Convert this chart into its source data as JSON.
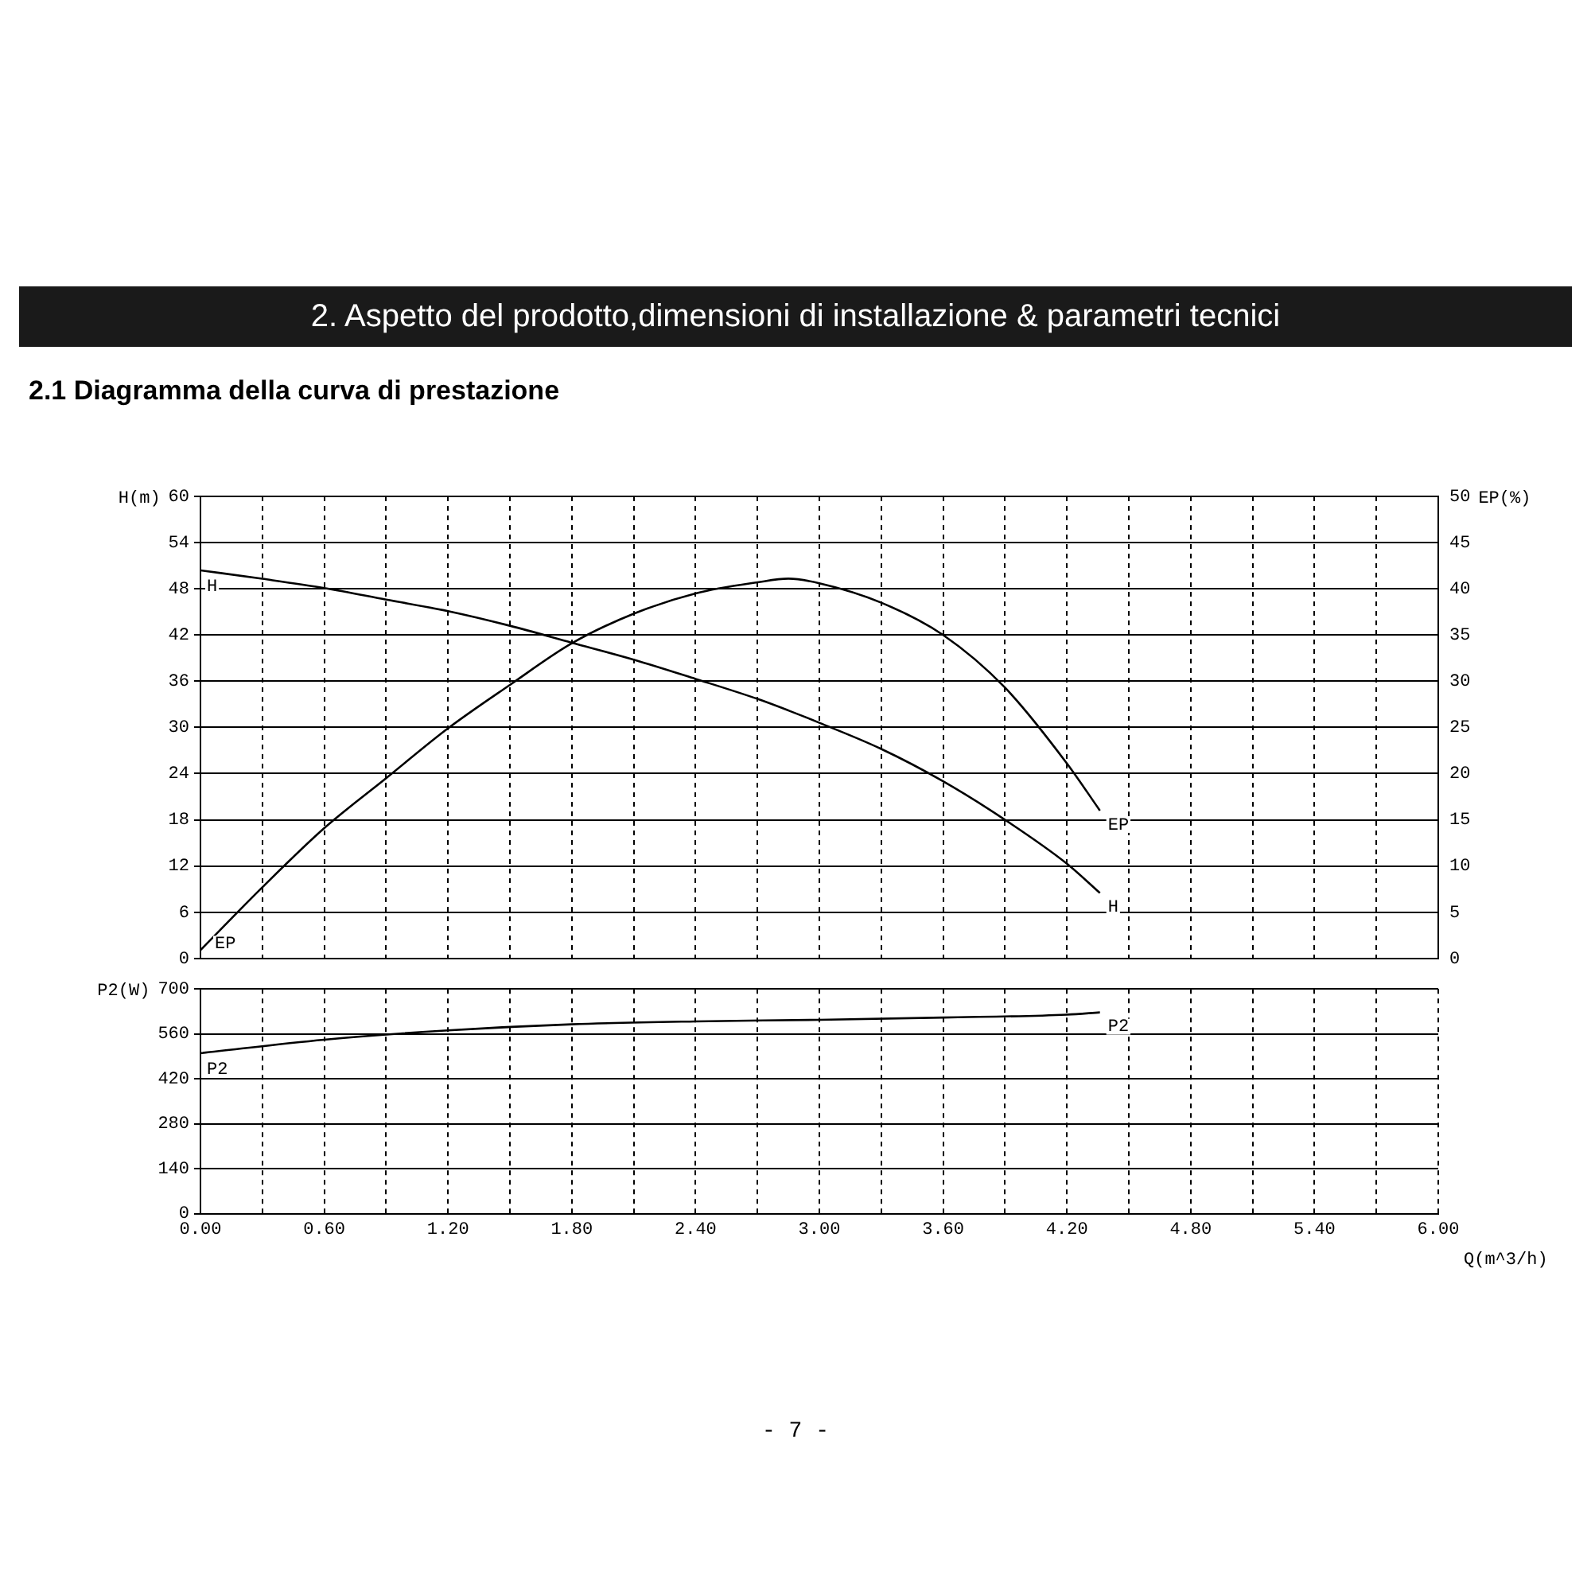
{
  "chart_data": [
    {
      "type": "line",
      "title": "2. Aspetto del prodotto,dimensioni di installazione & parametri tecnici",
      "subtitle": "2.1 Diagramma della curva di prestazione",
      "ylabel": "H(m)",
      "y2label": "EP(%)",
      "x": [
        0,
        0.3,
        0.6,
        0.9,
        1.2,
        1.5,
        1.8,
        2.1,
        2.4,
        2.7,
        2.85,
        3.0,
        3.3,
        3.6,
        3.9,
        4.2,
        4.36
      ],
      "series": [
        {
          "name": "H",
          "color": "#000000",
          "values": [
            50.4,
            49.3,
            48.1,
            46.6,
            45.1,
            43.2,
            41.0,
            38.8,
            36.3,
            33.7,
            32.2,
            30.6,
            27.2,
            23.0,
            18.0,
            12.3,
            8.5
          ]
        },
        {
          "name": "EP",
          "color": "#000000",
          "axis": "y2",
          "values": [
            0.9,
            7.7,
            14.1,
            19.5,
            24.9,
            29.6,
            34.1,
            37.3,
            39.5,
            40.7,
            41.1,
            40.6,
            38.5,
            35.0,
            29.3,
            21.1,
            16.0
          ]
        }
      ],
      "xlim": [
        0,
        6
      ],
      "xticks": [
        0,
        0.3,
        0.6,
        0.9,
        1.2,
        1.5,
        1.8,
        2.1,
        2.4,
        2.7,
        3,
        3.3,
        3.6,
        3.9,
        4.2,
        4.5,
        4.8,
        5.1,
        5.4,
        5.7,
        6
      ],
      "ylim": [
        0,
        60
      ],
      "yticks": [
        0,
        6,
        12,
        18,
        24,
        30,
        36,
        42,
        48,
        54,
        60
      ],
      "y2lim": [
        0,
        50
      ],
      "y2ticks": [
        0,
        5,
        10,
        15,
        20,
        25,
        30,
        35,
        40,
        45,
        50
      ],
      "tick_labels": "y",
      "grid": true,
      "legend": false,
      "marker": "none",
      "line_style": "solid"
    },
    {
      "type": "line",
      "xlabel": "Q(m^3/h)",
      "ylabel": "P2(W)",
      "series": [
        {
          "name": "P2",
          "color": "#000000",
          "x": [
            0,
            0.6,
            1.2,
            1.8,
            2.4,
            3.0,
            3.6,
            4.2,
            4.36
          ],
          "values": [
            500,
            542,
            571,
            590,
            599,
            604,
            611,
            620,
            627
          ]
        }
      ],
      "xlim": [
        0,
        6
      ],
      "xticks": [
        {
          "value": 0,
          "label": "0.00"
        },
        {
          "value": 0.3,
          "label": null
        },
        {
          "value": 0.6,
          "label": "0.60"
        },
        {
          "value": 0.9,
          "label": null
        },
        {
          "value": 1.2,
          "label": "1.20"
        },
        {
          "value": 1.5,
          "label": null
        },
        {
          "value": 1.8,
          "label": "1.80"
        },
        {
          "value": 2.1,
          "label": null
        },
        {
          "value": 2.4,
          "label": "2.40"
        },
        {
          "value": 2.7,
          "label": null
        },
        {
          "value": 3,
          "label": "3.00"
        },
        {
          "value": 3.3,
          "label": null
        },
        {
          "value": 3.6,
          "label": "3.60"
        },
        {
          "value": 3.9,
          "label": null
        },
        {
          "value": 4.2,
          "label": "4.20"
        },
        {
          "value": 4.5,
          "label": null
        },
        {
          "value": 4.8,
          "label": "4.80"
        },
        {
          "value": 5.1,
          "label": null
        },
        {
          "value": 5.4,
          "label": "5.40"
        },
        {
          "value": 5.7,
          "label": null
        },
        {
          "value": 6,
          "label": "6.00"
        }
      ],
      "ylim": [
        0,
        700
      ],
      "yticks": [
        0,
        140,
        280,
        420,
        560,
        700
      ],
      "grid": true,
      "legend": false,
      "marker": "none",
      "line_style": "solid",
      "annotations": [
        "- 7 -"
      ]
    }
  ]
}
